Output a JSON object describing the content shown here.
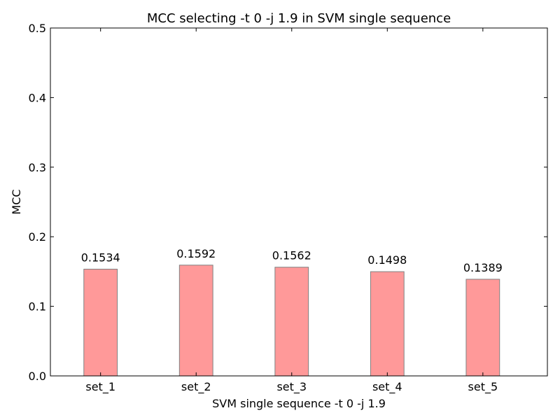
{
  "chart_data": {
    "type": "bar",
    "title": "MCC selecting -t 0 -j 1.9 in SVM single sequence",
    "xlabel": "SVM single sequence -t 0 -j 1.9",
    "ylabel": "MCC",
    "categories": [
      "set_1",
      "set_2",
      "set_3",
      "set_4",
      "set_5"
    ],
    "values": [
      0.1534,
      0.1592,
      0.1562,
      0.1498,
      0.1389
    ],
    "value_labels": [
      "0.1534",
      "0.1592",
      "0.1562",
      "0.1498",
      "0.1389"
    ],
    "ylim": [
      0,
      0.5
    ],
    "yticks": [
      0.0,
      0.1,
      0.2,
      0.3,
      0.4,
      0.5
    ],
    "ytick_labels": [
      "0.0",
      "0.1",
      "0.2",
      "0.3",
      "0.4",
      "0.5"
    ],
    "grid": false,
    "bar_color": "#ff9999",
    "bar_edge_color": "#808080"
  }
}
